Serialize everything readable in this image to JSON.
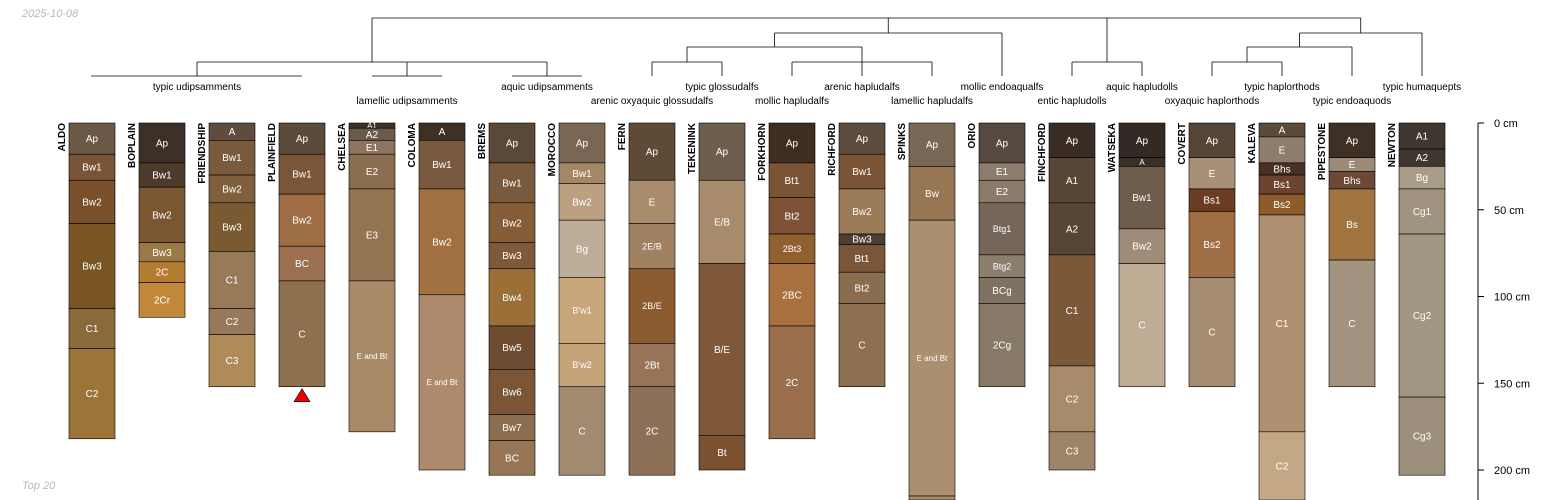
{
  "date_label": "2025-10-08",
  "subset_label": "Top 20",
  "depth_axis": {
    "max_depth_cm": 219,
    "ticks": [
      {
        "value": 0,
        "label": "0 cm"
      },
      {
        "value": 50,
        "label": "50 cm"
      },
      {
        "value": 100,
        "label": "100 cm"
      },
      {
        "value": 150,
        "label": "150 cm"
      },
      {
        "value": 200,
        "label": "200 cm"
      }
    ]
  },
  "classes": [
    {
      "id": "udip_typic",
      "label": "typic udipsamments",
      "members": [
        "ALDO",
        "BOPLAIN",
        "FRIENDSHIP",
        "PLAINFIELD"
      ],
      "row": 1
    },
    {
      "id": "udip_lamellic",
      "label": "lamellic udipsamments",
      "members": [
        "CHELSEA",
        "COLOMA"
      ],
      "row": 2
    },
    {
      "id": "udip_aquic",
      "label": "aquic udipsamments",
      "members": [
        "BREMS",
        "MOROCCO"
      ],
      "row": 1
    },
    {
      "id": "gloss_arenic_oxy",
      "label": "arenic oxyaquic glossudalfs",
      "members": [
        "FERN"
      ],
      "row": 2
    },
    {
      "id": "gloss_typic",
      "label": "typic glossudalfs",
      "members": [
        "TEKENINK"
      ],
      "row": 1
    },
    {
      "id": "hapl_mollic",
      "label": "mollic hapludalfs",
      "members": [
        "FORKHORN"
      ],
      "row": 2
    },
    {
      "id": "hapl_arenic",
      "label": "arenic hapludalfs",
      "members": [
        "RICHFORD"
      ],
      "row": 1
    },
    {
      "id": "hapl_lamellic",
      "label": "lamellic hapludalfs",
      "members": [
        "SPINKS"
      ],
      "row": 2
    },
    {
      "id": "endo_mollic",
      "label": "mollic endoaqualfs",
      "members": [
        "ORIO"
      ],
      "row": 1
    },
    {
      "id": "hapludoll_entic",
      "label": "entic hapludolls",
      "members": [
        "FINCHFORD"
      ],
      "row": 2
    },
    {
      "id": "hapludoll_aquic",
      "label": "aquic hapludolls",
      "members": [
        "WATSEKA"
      ],
      "row": 1
    },
    {
      "id": "haplorthod_oxy",
      "label": "oxyaquic haplorthods",
      "members": [
        "COVERT"
      ],
      "row": 2
    },
    {
      "id": "haplorthod_typic",
      "label": "typic haplorthods",
      "members": [
        "KALEVA"
      ],
      "row": 1
    },
    {
      "id": "endoaquod_typic",
      "label": "typic endoaquods",
      "members": [
        "PIPESTONE"
      ],
      "row": 2
    },
    {
      "id": "humaquept_typic",
      "label": "typic humaquepts",
      "members": [
        "NEWTON"
      ],
      "row": 1
    }
  ],
  "profiles": [
    {
      "name": "ALDO",
      "horizons": [
        {
          "name": "Ap",
          "top": 0,
          "bottom": 18,
          "color": "#6b5846"
        },
        {
          "name": "Bw1",
          "top": 18,
          "bottom": 33,
          "color": "#7a5436"
        },
        {
          "name": "Bw2",
          "top": 33,
          "bottom": 58,
          "color": "#7a4f2c"
        },
        {
          "name": "Bw3",
          "top": 58,
          "bottom": 107,
          "color": "#7a5524"
        },
        {
          "name": "C1",
          "top": 107,
          "bottom": 130,
          "color": "#8a6a3a"
        },
        {
          "name": "C2",
          "top": 130,
          "bottom": 182,
          "color": "#9c7438"
        }
      ]
    },
    {
      "name": "BOPLAIN",
      "horizons": [
        {
          "name": "Ap",
          "top": 0,
          "bottom": 23,
          "color": "#3c3028"
        },
        {
          "name": "Bw1",
          "top": 23,
          "bottom": 37,
          "color": "#4e3a28"
        },
        {
          "name": "Bw2",
          "top": 37,
          "bottom": 69,
          "color": "#7a5632"
        },
        {
          "name": "Bw3",
          "top": 69,
          "bottom": 80,
          "color": "#9a7a44"
        },
        {
          "name": "2C",
          "top": 80,
          "bottom": 92,
          "color": "#b47c30"
        },
        {
          "name": "2Cr",
          "top": 92,
          "bottom": 112,
          "color": "#c08838"
        }
      ]
    },
    {
      "name": "FRIENDSHIP",
      "horizons": [
        {
          "name": "A",
          "top": 0,
          "bottom": 10,
          "color": "#5e4c3e"
        },
        {
          "name": "Bw1",
          "top": 10,
          "bottom": 30,
          "color": "#7a5a3c"
        },
        {
          "name": "Bw2",
          "top": 30,
          "bottom": 46,
          "color": "#80603c"
        },
        {
          "name": "Bw3",
          "top": 46,
          "bottom": 74,
          "color": "#7a5a30"
        },
        {
          "name": "C1",
          "top": 74,
          "bottom": 107,
          "color": "#977a58"
        },
        {
          "name": "C2",
          "top": 107,
          "bottom": 122,
          "color": "#96785a"
        },
        {
          "name": "C3",
          "top": 122,
          "bottom": 152,
          "color": "#b08a58"
        }
      ]
    },
    {
      "name": "PLAINFIELD",
      "marker": true,
      "horizons": [
        {
          "name": "Ap",
          "top": 0,
          "bottom": 18,
          "color": "#5c4a3a"
        },
        {
          "name": "Bw1",
          "top": 18,
          "bottom": 41,
          "color": "#7a5538"
        },
        {
          "name": "Bw2",
          "top": 41,
          "bottom": 71,
          "color": "#9f6e44"
        },
        {
          "name": "BC",
          "top": 71,
          "bottom": 91,
          "color": "#9a7050"
        },
        {
          "name": "C",
          "top": 91,
          "bottom": 152,
          "color": "#8f704e"
        }
      ]
    },
    {
      "name": "CHELSEA",
      "horizons": [
        {
          "name": "A1",
          "top": 0,
          "bottom": 3,
          "color": "#3c3028"
        },
        {
          "name": "A2",
          "top": 3,
          "bottom": 10,
          "color": "#6a5a4a"
        },
        {
          "name": "E1",
          "top": 10,
          "bottom": 18,
          "color": "#8c7460"
        },
        {
          "name": "E2",
          "top": 18,
          "bottom": 38,
          "color": "#8a6e50"
        },
        {
          "name": "E3",
          "top": 38,
          "bottom": 91,
          "color": "#937452"
        },
        {
          "name": "E and Bt",
          "top": 91,
          "bottom": 178,
          "color": "#a88a68"
        }
      ]
    },
    {
      "name": "COLOMA",
      "horizons": [
        {
          "name": "A",
          "top": 0,
          "bottom": 10,
          "color": "#3e3024"
        },
        {
          "name": "Bw1",
          "top": 10,
          "bottom": 38,
          "color": "#7a5a3e"
        },
        {
          "name": "Bw2",
          "top": 38,
          "bottom": 99,
          "color": "#a07040"
        },
        {
          "name": "E and Bt",
          "top": 99,
          "bottom": 200,
          "color": "#ad8a6c"
        }
      ]
    },
    {
      "name": "BREMS",
      "horizons": [
        {
          "name": "Ap",
          "top": 0,
          "bottom": 23,
          "color": "#5a4838"
        },
        {
          "name": "Bw1",
          "top": 23,
          "bottom": 46,
          "color": "#7a5a3e"
        },
        {
          "name": "Bw2",
          "top": 46,
          "bottom": 69,
          "color": "#845c38"
        },
        {
          "name": "Bw3",
          "top": 69,
          "bottom": 84,
          "color": "#80593a"
        },
        {
          "name": "Bw4",
          "top": 84,
          "bottom": 117,
          "color": "#9a7038"
        },
        {
          "name": "Bw5",
          "top": 117,
          "bottom": 142,
          "color": "#6e4c32"
        },
        {
          "name": "Bw6",
          "top": 142,
          "bottom": 168,
          "color": "#7a5636"
        },
        {
          "name": "Bw7",
          "top": 168,
          "bottom": 183,
          "color": "#8c6e52"
        },
        {
          "name": "BC",
          "top": 183,
          "bottom": 203,
          "color": "#967654"
        }
      ]
    },
    {
      "name": "MOROCCO",
      "horizons": [
        {
          "name": "Ap",
          "top": 0,
          "bottom": 23,
          "color": "#7a6652"
        },
        {
          "name": "Bw1",
          "top": 23,
          "bottom": 35,
          "color": "#a48866"
        },
        {
          "name": "Bw2",
          "top": 35,
          "bottom": 56,
          "color": "#bca080"
        },
        {
          "name": "Bg",
          "top": 56,
          "bottom": 89,
          "color": "#bcac98"
        },
        {
          "name": "B'w1",
          "top": 89,
          "bottom": 127,
          "color": "#c8a67a"
        },
        {
          "name": "B'w2",
          "top": 127,
          "bottom": 152,
          "color": "#c6a47a"
        },
        {
          "name": "C",
          "top": 152,
          "bottom": 203,
          "color": "#a08a70"
        }
      ]
    },
    {
      "name": "FERN",
      "horizons": [
        {
          "name": "Ap",
          "top": 0,
          "bottom": 33,
          "color": "#5e4a36"
        },
        {
          "name": "E",
          "top": 33,
          "bottom": 58,
          "color": "#a88c6c"
        },
        {
          "name": "2E/B",
          "top": 58,
          "bottom": 84,
          "color": "#a08262"
        },
        {
          "name": "2B/E",
          "top": 84,
          "bottom": 127,
          "color": "#8a5c30"
        },
        {
          "name": "2Bt",
          "top": 127,
          "bottom": 152,
          "color": "#977458"
        },
        {
          "name": "2C",
          "top": 152,
          "bottom": 203,
          "color": "#8c7058"
        }
      ]
    },
    {
      "name": "TEKENINK",
      "horizons": [
        {
          "name": "Ap",
          "top": 0,
          "bottom": 33,
          "color": "#6e5e4e"
        },
        {
          "name": "E/B",
          "top": 33,
          "bottom": 81,
          "color": "#a88a6c"
        },
        {
          "name": "B/E",
          "top": 81,
          "bottom": 180,
          "color": "#7e5838"
        },
        {
          "name": "Bt",
          "top": 180,
          "bottom": 200,
          "color": "#7a5232"
        }
      ]
    },
    {
      "name": "FORKHORN",
      "horizons": [
        {
          "name": "Ap",
          "top": 0,
          "bottom": 23,
          "color": "#3e2e22"
        },
        {
          "name": "Bt1",
          "top": 23,
          "bottom": 43,
          "color": "#7a5234"
        },
        {
          "name": "Bt2",
          "top": 43,
          "bottom": 64,
          "color": "#7e5234"
        },
        {
          "name": "2Bt3",
          "top": 64,
          "bottom": 81,
          "color": "#90602e"
        },
        {
          "name": "2BC",
          "top": 81,
          "bottom": 117,
          "color": "#a8703e"
        },
        {
          "name": "2C",
          "top": 117,
          "bottom": 182,
          "color": "#9a6e4c"
        }
      ]
    },
    {
      "name": "RICHFORD",
      "horizons": [
        {
          "name": "Ap",
          "top": 0,
          "bottom": 18,
          "color": "#5e4c3e"
        },
        {
          "name": "Bw1",
          "top": 18,
          "bottom": 38,
          "color": "#7a5434"
        },
        {
          "name": "Bw2",
          "top": 38,
          "bottom": 64,
          "color": "#9c7c58"
        },
        {
          "name": "Bw3",
          "top": 64,
          "bottom": 70,
          "color": "#4e3e32"
        },
        {
          "name": "Bt1",
          "top": 70,
          "bottom": 86,
          "color": "#7a5638"
        },
        {
          "name": "Bt2",
          "top": 86,
          "bottom": 104,
          "color": "#8a6c4e"
        },
        {
          "name": "C",
          "top": 104,
          "bottom": 152,
          "color": "#8e7050"
        }
      ]
    },
    {
      "name": "SPINKS",
      "horizons": [
        {
          "name": "Ap",
          "top": 0,
          "bottom": 25,
          "color": "#7a6856"
        },
        {
          "name": "Bw",
          "top": 25,
          "bottom": 56,
          "color": "#977654"
        },
        {
          "name": "E and Bt",
          "top": 56,
          "bottom": 215,
          "color": "#aa906e"
        },
        {
          "name": "",
          "top": 215,
          "bottom": 219,
          "color": "#a88c6c"
        }
      ]
    },
    {
      "name": "ORIO",
      "horizons": [
        {
          "name": "Ap",
          "top": 0,
          "bottom": 23,
          "color": "#564a40"
        },
        {
          "name": "E1",
          "top": 23,
          "bottom": 33,
          "color": "#8c7c6c"
        },
        {
          "name": "E2",
          "top": 33,
          "bottom": 46,
          "color": "#8a7a6a"
        },
        {
          "name": "Btg1",
          "top": 46,
          "bottom": 76,
          "color": "#76665a"
        },
        {
          "name": "Btg2",
          "top": 76,
          "bottom": 89,
          "color": "#8a7e6c"
        },
        {
          "name": "BCg",
          "top": 89,
          "bottom": 104,
          "color": "#807262"
        },
        {
          "name": "2Cg",
          "top": 104,
          "bottom": 152,
          "color": "#867a66"
        }
      ]
    },
    {
      "name": "FINCHFORD",
      "horizons": [
        {
          "name": "Ap",
          "top": 0,
          "bottom": 20,
          "color": "#3a2c22"
        },
        {
          "name": "A1",
          "top": 20,
          "bottom": 46,
          "color": "#574635"
        },
        {
          "name": "A2",
          "top": 46,
          "bottom": 76,
          "color": "#574635"
        },
        {
          "name": "C1",
          "top": 76,
          "bottom": 140,
          "color": "#7a5838"
        },
        {
          "name": "C2",
          "top": 140,
          "bottom": 178,
          "color": "#a88a6c"
        },
        {
          "name": "C3",
          "top": 178,
          "bottom": 200,
          "color": "#9c8466"
        }
      ]
    },
    {
      "name": "WATSEKA",
      "horizons": [
        {
          "name": "Ap",
          "top": 0,
          "bottom": 20,
          "color": "#342a24"
        },
        {
          "name": "A",
          "top": 20,
          "bottom": 25,
          "color": "#3a302a"
        },
        {
          "name": "Bw1",
          "top": 25,
          "bottom": 61,
          "color": "#6e5c4c"
        },
        {
          "name": "Bw2",
          "top": 61,
          "bottom": 81,
          "color": "#9e8c78"
        },
        {
          "name": "C",
          "top": 81,
          "bottom": 152,
          "color": "#beac94"
        }
      ]
    },
    {
      "name": "COVERT",
      "horizons": [
        {
          "name": "Ap",
          "top": 0,
          "bottom": 20,
          "color": "#544536"
        },
        {
          "name": "E",
          "top": 20,
          "bottom": 38,
          "color": "#a89078"
        },
        {
          "name": "Bs1",
          "top": 38,
          "bottom": 51,
          "color": "#6a3c22"
        },
        {
          "name": "Bs2",
          "top": 51,
          "bottom": 89,
          "color": "#a06e44"
        },
        {
          "name": "C",
          "top": 89,
          "bottom": 152,
          "color": "#a68c70"
        }
      ]
    },
    {
      "name": "KALEVA",
      "horizons": [
        {
          "name": "A",
          "top": 0,
          "bottom": 8,
          "color": "#5c4a3a"
        },
        {
          "name": "E",
          "top": 8,
          "bottom": 23,
          "color": "#8e7c6c"
        },
        {
          "name": "Bhs",
          "top": 23,
          "bottom": 30,
          "color": "#4c3024"
        },
        {
          "name": "Bs1",
          "top": 30,
          "bottom": 41,
          "color": "#6a4430"
        },
        {
          "name": "Bs2",
          "top": 41,
          "bottom": 53,
          "color": "#8e5c28"
        },
        {
          "name": "C1",
          "top": 53,
          "bottom": 178,
          "color": "#ae9070"
        },
        {
          "name": "C2",
          "top": 178,
          "bottom": 219,
          "color": "#c4a886"
        }
      ]
    },
    {
      "name": "PIPESTONE",
      "horizons": [
        {
          "name": "Ap",
          "top": 0,
          "bottom": 20,
          "color": "#3e3024"
        },
        {
          "name": "E",
          "top": 20,
          "bottom": 28,
          "color": "#9c8a78"
        },
        {
          "name": "Bhs",
          "top": 28,
          "bottom": 38,
          "color": "#6a4a36"
        },
        {
          "name": "Bs",
          "top": 38,
          "bottom": 79,
          "color": "#a07440"
        },
        {
          "name": "C",
          "top": 79,
          "bottom": 152,
          "color": "#a49280"
        }
      ]
    },
    {
      "name": "NEWTON",
      "horizons": [
        {
          "name": "A1",
          "top": 0,
          "bottom": 15,
          "color": "#3e3630"
        },
        {
          "name": "A2",
          "top": 15,
          "bottom": 25,
          "color": "#3e3630"
        },
        {
          "name": "Bg",
          "top": 25,
          "bottom": 38,
          "color": "#a89c88"
        },
        {
          "name": "Cg1",
          "top": 38,
          "bottom": 64,
          "color": "#a09480"
        },
        {
          "name": "Cg2",
          "top": 64,
          "bottom": 158,
          "color": "#a09682"
        },
        {
          "name": "Cg3",
          "top": 158,
          "bottom": 203,
          "color": "#9c907c"
        }
      ]
    }
  ]
}
